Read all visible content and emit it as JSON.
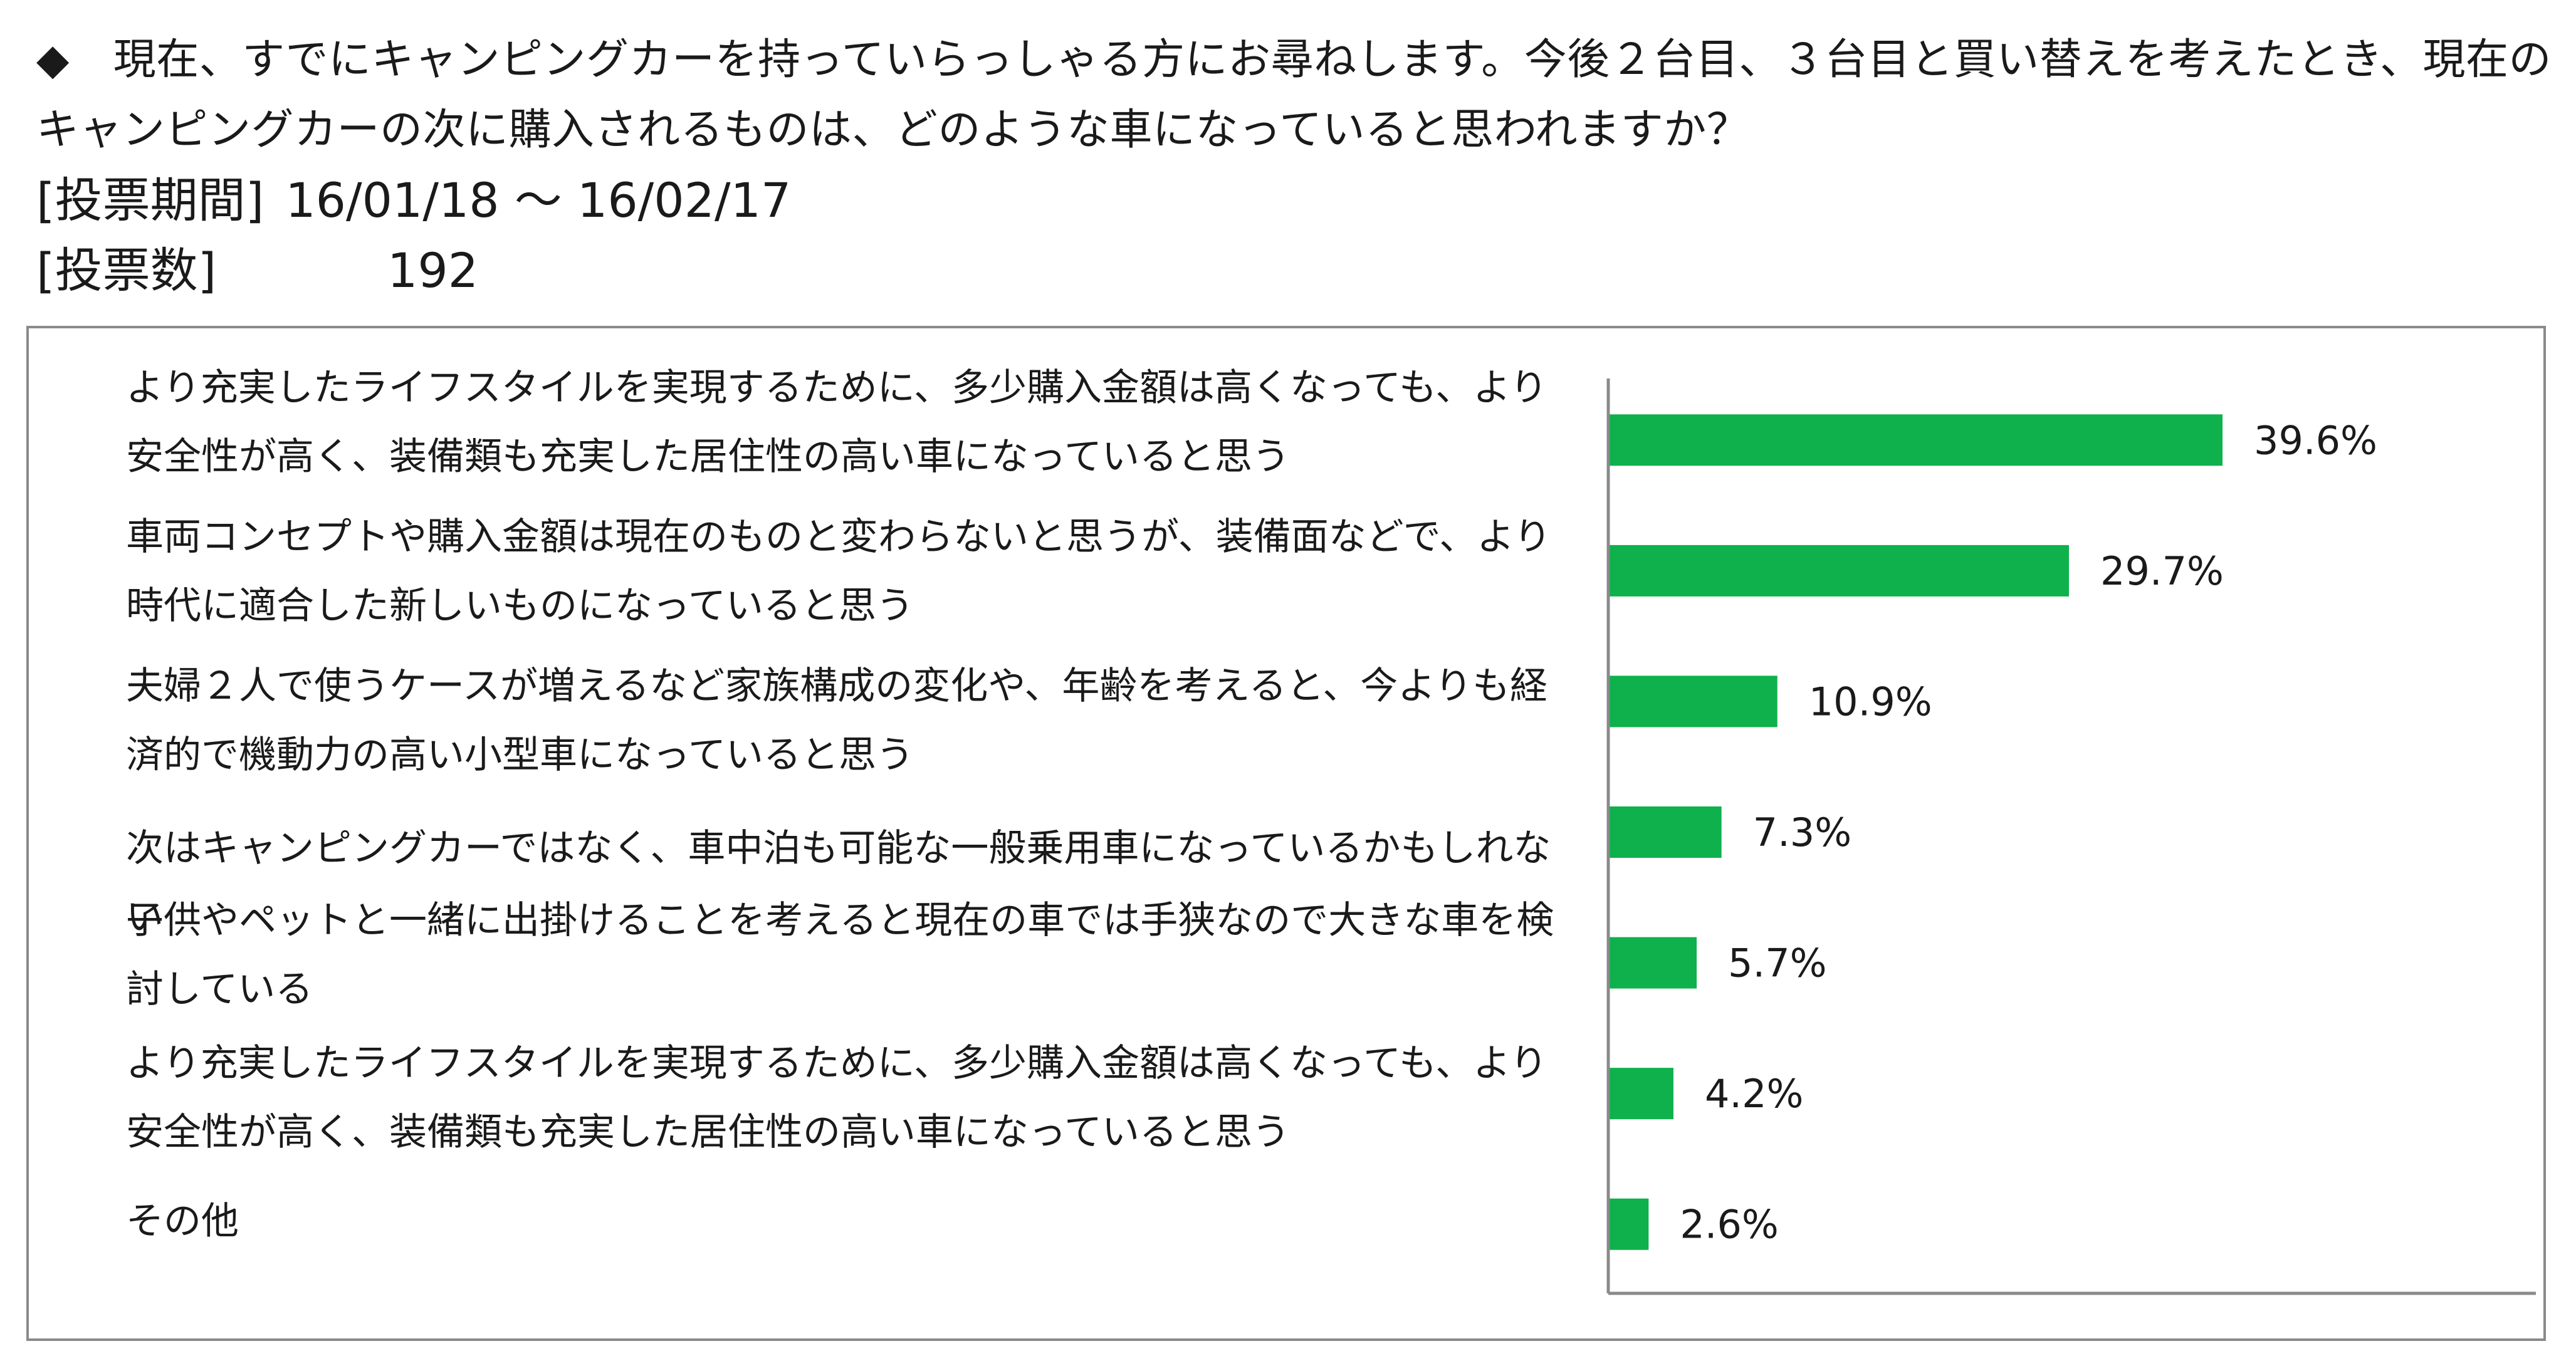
{
  "header": {
    "question_marker": "◆",
    "question_line1": "現在、すでにキャンピングカーを持っていらっしゃる方にお尋ねします。今後２台目、３台目と買い替えを考えたとき、現在の",
    "question_line2": "キャンピングカーの次に購入されるものは、どのような車になっていると思われますか？",
    "period_label": "[投票期間]",
    "period_value": "16/01/18 ～ 16/02/17",
    "count_label": "[投票数]",
    "count_value": "192"
  },
  "chart_data": {
    "type": "bar",
    "orientation": "horizontal",
    "categories": [
      "より充実したライフスタイルを実現するために、多少購入金額は高くなっても、より安全性が高く、装備類も充実した居住性の高い車になっていると思う",
      "車両コンセプトや購入金額は現在のものと変わらないと思うが、装備面などで、より時代に適合した新しいものになっていると思う",
      "夫婦２人で使うケースが増えるなど家族構成の変化や、年齢を考えると、今よりも経済的で機動力の高い小型車になっていると思う",
      "次はキャンピングカーではなく、車中泊も可能な一般乗用車になっているかもしれない",
      "子供やペットと一緒に出掛けることを考えると現在の車では手狭なので大きな車を検討している",
      "より充実したライフスタイルを実現するために、多少購入金額は高くなっても、より安全性が高く、装備類も充実した居住性の高い車になっていると思う",
      "その他"
    ],
    "values": [
      39.6,
      29.7,
      10.9,
      7.3,
      5.7,
      4.2,
      2.6
    ],
    "value_labels": [
      "39.6%",
      "29.7%",
      "10.9%",
      "7.3%",
      "5.7%",
      "4.2%",
      "2.6%"
    ],
    "xlim": [
      0,
      60
    ],
    "bar_color": "#0eb14b",
    "axis_color": "#8a8a8a",
    "grid": false,
    "legend": "none"
  }
}
